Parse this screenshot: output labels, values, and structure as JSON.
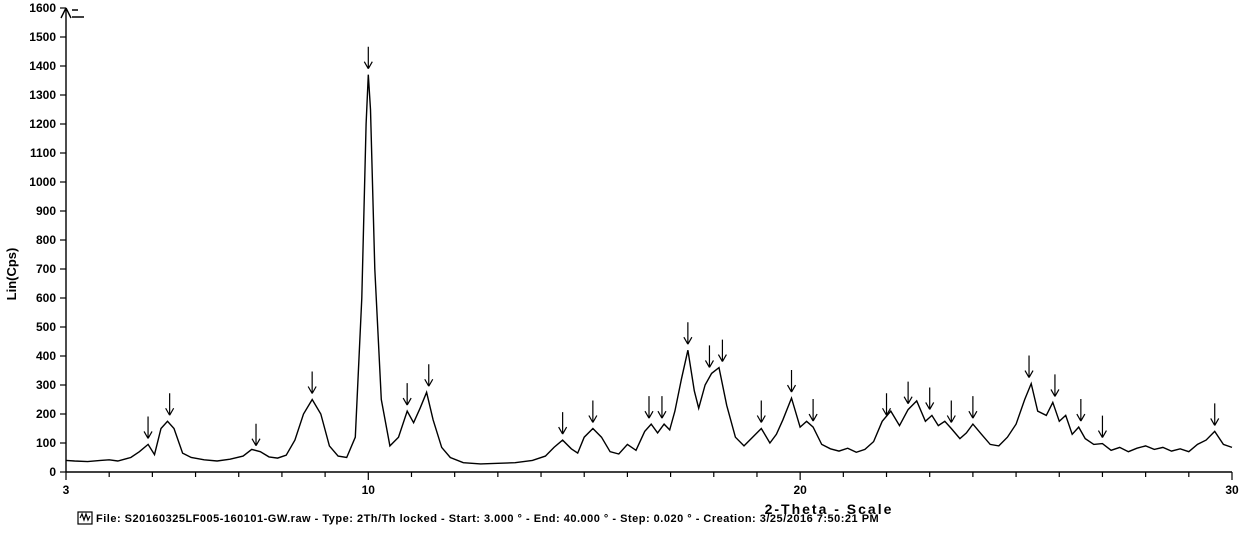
{
  "chart": {
    "type": "line",
    "background_color": "#ffffff",
    "line_color": "#000000",
    "axis_color": "#000000",
    "text_color": "#000000",
    "y_axis": {
      "label": "Lin(Cps)",
      "lim": [
        0,
        1600
      ],
      "tick_step": 100,
      "tick_labels": [
        "0",
        "100",
        "200",
        "300",
        "400",
        "500",
        "600",
        "700",
        "800",
        "900",
        "1000",
        "1100",
        "1200",
        "1300",
        "1400",
        "1500",
        "1600"
      ],
      "label_fontsize": 13,
      "tick_fontsize": 12
    },
    "x_axis": {
      "label": "2-Theta - Scale",
      "lim": [
        3,
        30
      ],
      "major_ticks": [
        3,
        10,
        20,
        30
      ],
      "major_tick_labels": [
        "3",
        "10",
        "20",
        "30"
      ],
      "minor_step": 1,
      "label_fontsize": 14,
      "tick_fontsize": 12
    },
    "peaks_marked_x": [
      4.9,
      5.4,
      7.4,
      8.7,
      10.0,
      10.9,
      11.4,
      14.5,
      15.2,
      16.5,
      16.8,
      17.4,
      17.9,
      18.2,
      19.1,
      19.8,
      20.3,
      22.0,
      22.5,
      23.0,
      23.5,
      24.0,
      25.3,
      25.9,
      26.5,
      27.0,
      29.6
    ],
    "peak_marker_height": 22,
    "series": [
      [
        3.0,
        40
      ],
      [
        3.2,
        38
      ],
      [
        3.5,
        36
      ],
      [
        3.8,
        40
      ],
      [
        4.0,
        42
      ],
      [
        4.2,
        38
      ],
      [
        4.5,
        50
      ],
      [
        4.7,
        70
      ],
      [
        4.9,
        95
      ],
      [
        5.05,
        60
      ],
      [
        5.2,
        150
      ],
      [
        5.35,
        175
      ],
      [
        5.5,
        150
      ],
      [
        5.7,
        65
      ],
      [
        5.9,
        50
      ],
      [
        6.2,
        42
      ],
      [
        6.5,
        38
      ],
      [
        6.8,
        44
      ],
      [
        7.1,
        55
      ],
      [
        7.3,
        78
      ],
      [
        7.5,
        70
      ],
      [
        7.7,
        52
      ],
      [
        7.9,
        48
      ],
      [
        8.1,
        58
      ],
      [
        8.3,
        110
      ],
      [
        8.5,
        200
      ],
      [
        8.7,
        250
      ],
      [
        8.9,
        200
      ],
      [
        9.1,
        90
      ],
      [
        9.3,
        55
      ],
      [
        9.5,
        50
      ],
      [
        9.7,
        120
      ],
      [
        9.85,
        600
      ],
      [
        9.95,
        1200
      ],
      [
        10.0,
        1370
      ],
      [
        10.05,
        1250
      ],
      [
        10.15,
        700
      ],
      [
        10.3,
        250
      ],
      [
        10.5,
        90
      ],
      [
        10.7,
        120
      ],
      [
        10.9,
        210
      ],
      [
        11.05,
        170
      ],
      [
        11.2,
        220
      ],
      [
        11.35,
        275
      ],
      [
        11.5,
        180
      ],
      [
        11.7,
        85
      ],
      [
        11.9,
        50
      ],
      [
        12.2,
        32
      ],
      [
        12.6,
        28
      ],
      [
        13.0,
        30
      ],
      [
        13.4,
        32
      ],
      [
        13.8,
        40
      ],
      [
        14.1,
        55
      ],
      [
        14.3,
        85
      ],
      [
        14.5,
        110
      ],
      [
        14.7,
        80
      ],
      [
        14.85,
        65
      ],
      [
        15.0,
        120
      ],
      [
        15.2,
        150
      ],
      [
        15.4,
        120
      ],
      [
        15.6,
        70
      ],
      [
        15.8,
        62
      ],
      [
        16.0,
        95
      ],
      [
        16.2,
        75
      ],
      [
        16.4,
        140
      ],
      [
        16.55,
        165
      ],
      [
        16.7,
        135
      ],
      [
        16.85,
        165
      ],
      [
        16.98,
        145
      ],
      [
        17.1,
        210
      ],
      [
        17.25,
        320
      ],
      [
        17.4,
        420
      ],
      [
        17.55,
        280
      ],
      [
        17.65,
        220
      ],
      [
        17.8,
        300
      ],
      [
        17.95,
        340
      ],
      [
        18.12,
        360
      ],
      [
        18.3,
        230
      ],
      [
        18.5,
        120
      ],
      [
        18.7,
        90
      ],
      [
        18.9,
        120
      ],
      [
        19.1,
        150
      ],
      [
        19.3,
        100
      ],
      [
        19.45,
        130
      ],
      [
        19.6,
        180
      ],
      [
        19.8,
        255
      ],
      [
        20.0,
        155
      ],
      [
        20.15,
        175
      ],
      [
        20.3,
        155
      ],
      [
        20.5,
        95
      ],
      [
        20.7,
        80
      ],
      [
        20.9,
        72
      ],
      [
        21.1,
        82
      ],
      [
        21.3,
        68
      ],
      [
        21.5,
        78
      ],
      [
        21.7,
        105
      ],
      [
        21.9,
        175
      ],
      [
        22.1,
        210
      ],
      [
        22.3,
        160
      ],
      [
        22.5,
        215
      ],
      [
        22.7,
        245
      ],
      [
        22.9,
        175
      ],
      [
        23.05,
        195
      ],
      [
        23.2,
        160
      ],
      [
        23.35,
        175
      ],
      [
        23.5,
        150
      ],
      [
        23.7,
        115
      ],
      [
        23.85,
        135
      ],
      [
        24.0,
        165
      ],
      [
        24.2,
        130
      ],
      [
        24.4,
        95
      ],
      [
        24.6,
        90
      ],
      [
        24.8,
        120
      ],
      [
        25.0,
        165
      ],
      [
        25.2,
        250
      ],
      [
        25.35,
        305
      ],
      [
        25.5,
        210
      ],
      [
        25.7,
        195
      ],
      [
        25.85,
        240
      ],
      [
        26.0,
        175
      ],
      [
        26.15,
        195
      ],
      [
        26.3,
        130
      ],
      [
        26.45,
        155
      ],
      [
        26.6,
        115
      ],
      [
        26.8,
        95
      ],
      [
        27.0,
        98
      ],
      [
        27.2,
        75
      ],
      [
        27.4,
        85
      ],
      [
        27.6,
        70
      ],
      [
        27.8,
        82
      ],
      [
        28.0,
        90
      ],
      [
        28.2,
        78
      ],
      [
        28.4,
        85
      ],
      [
        28.6,
        72
      ],
      [
        28.8,
        80
      ],
      [
        29.0,
        70
      ],
      [
        29.2,
        95
      ],
      [
        29.4,
        110
      ],
      [
        29.6,
        140
      ],
      [
        29.8,
        95
      ],
      [
        30.0,
        85
      ]
    ]
  },
  "footer": {
    "legend_icon": true,
    "text": "File: S20160325LF005-160101-GW.raw - Type: 2Th/Th locked - Start: 3.000 ° - End: 40.000 ° - Step: 0.020 ° - Creation: 3/25/2016 7:50:21 PM",
    "fontsize": 11
  }
}
